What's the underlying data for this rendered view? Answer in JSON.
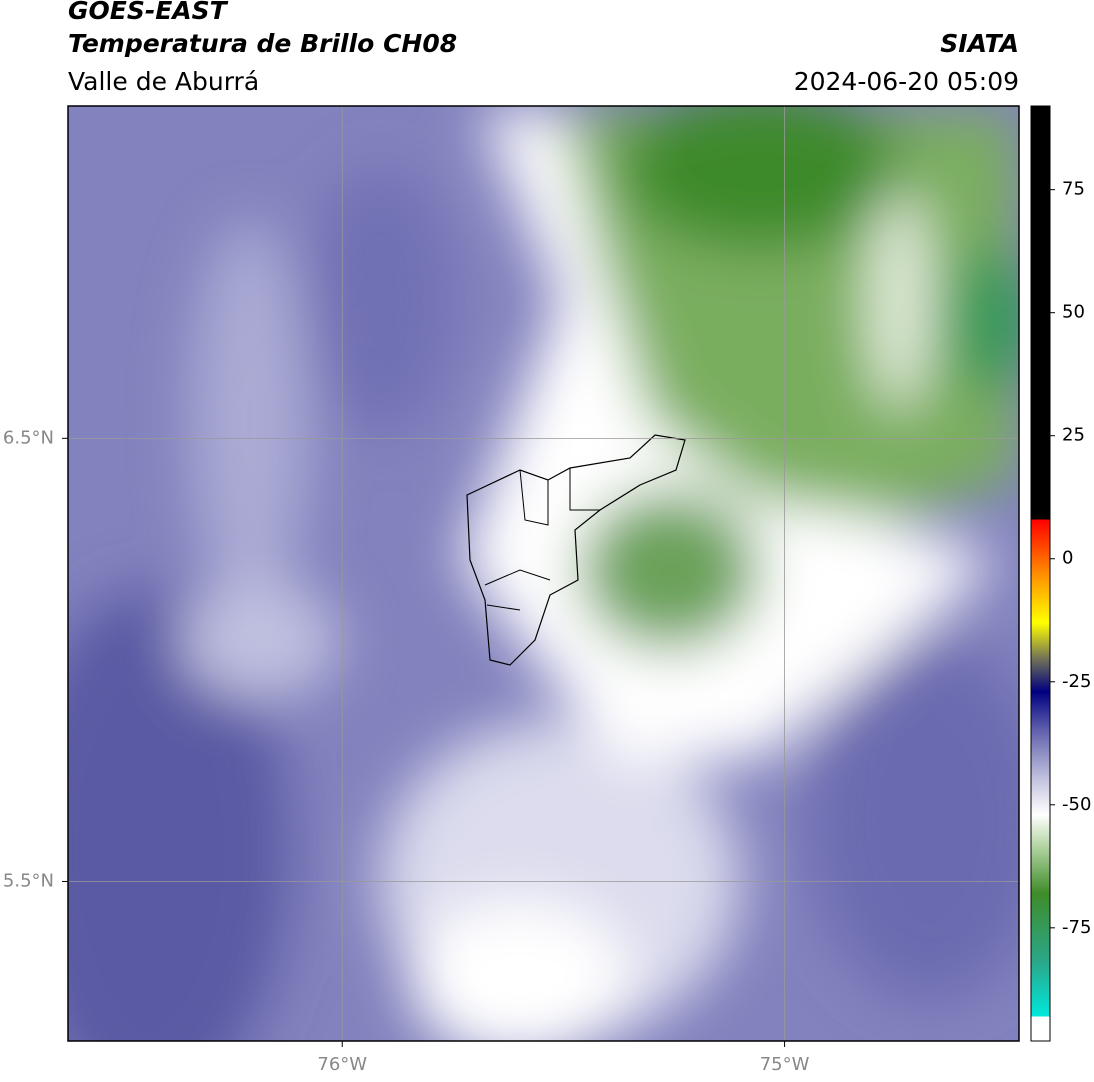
{
  "chart_data": {
    "type": "map",
    "title": "GOES-EAST",
    "subtitle": "Temperatura de Brillo CH08",
    "region": "Valle de Aburrá",
    "source": "SIATA",
    "datetime": "2024-06-20 05:09",
    "xlim": [
      -76.62,
      -74.47
    ],
    "ylim": [
      5.14,
      7.25
    ],
    "xticks": [
      {
        "value": -76,
        "label": "76°W"
      },
      {
        "value": -75,
        "label": "75°W"
      }
    ],
    "yticks": [
      {
        "value": 6.5,
        "label": "6.5°N"
      },
      {
        "value": 5.5,
        "label": "5.5°N"
      }
    ],
    "grid": true,
    "colorbar": {
      "ylim": [
        -98,
        92
      ],
      "yticks": [
        75,
        50,
        25,
        0,
        -25,
        -50,
        -75
      ],
      "stops": [
        {
          "value": -98,
          "color": "#ffffff"
        },
        {
          "value": -93,
          "color": "#ffffff"
        },
        {
          "value": -93,
          "color": "#00e8dc"
        },
        {
          "value": -82,
          "color": "#2aa88a"
        },
        {
          "value": -68,
          "color": "#3f8c2a"
        },
        {
          "value": -58,
          "color": "#b8d8a8"
        },
        {
          "value": -52,
          "color": "#ffffff"
        },
        {
          "value": -45,
          "color": "#c4c4e0"
        },
        {
          "value": -35,
          "color": "#6262ae"
        },
        {
          "value": -27,
          "color": "#000080"
        },
        {
          "value": -20,
          "color": "#777755"
        },
        {
          "value": -13,
          "color": "#ffff00"
        },
        {
          "value": -5,
          "color": "#ffa500"
        },
        {
          "value": 8,
          "color": "#ff0000"
        },
        {
          "value": 8,
          "color": "#000000"
        },
        {
          "value": 92,
          "color": "#000000"
        }
      ]
    }
  }
}
